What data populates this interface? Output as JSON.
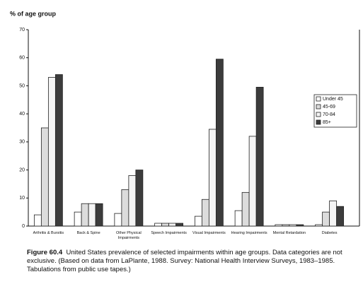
{
  "chart_data": {
    "type": "bar",
    "y_label": "% of age group",
    "categories": [
      "Arthritis & Bursitis",
      "Back & Spine",
      "Other Physical Impairments",
      "Speech Impairments",
      "Visual Impairments",
      "Hearing Impairments",
      "Mental Retardation",
      "Diabetes"
    ],
    "series": [
      {
        "name": "Under 45",
        "color": "#ffffff",
        "values": [
          4,
          5,
          4.5,
          1,
          3.5,
          5.5,
          0.5,
          0.5
        ]
      },
      {
        "name": "45-69",
        "color": "#dcdcdc",
        "values": [
          35,
          8,
          13,
          1,
          9.5,
          12,
          0.5,
          5
        ]
      },
      {
        "name": "70-84",
        "color": "#f4f4f4",
        "values": [
          53,
          8,
          18,
          1,
          34.5,
          32,
          0.5,
          9
        ]
      },
      {
        "name": "85+",
        "color": "#3c3c3c",
        "values": [
          54,
          8,
          20,
          1,
          59.5,
          49.5,
          0.5,
          7
        ]
      }
    ],
    "ylim": [
      0,
      70
    ],
    "yticks": [
      0,
      10,
      20,
      30,
      40,
      50,
      60,
      70
    ],
    "legend": "right",
    "caption_label": "Figure 60.4",
    "caption_text": "United States prevalence of selected impairments within age groups. Data categories are not exclusive. (Based on data from LaPlante, 1988. Survey: National Health Interview Surveys, 1983–1985. Tabulations from public use tapes.)"
  }
}
